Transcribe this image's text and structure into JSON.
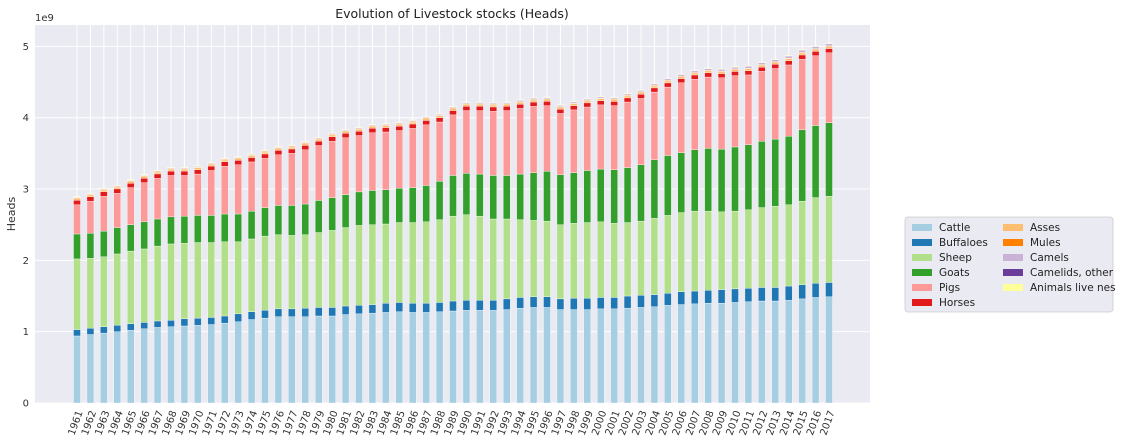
{
  "chart_data": {
    "type": "bar",
    "stacked": true,
    "title": "Evolution of Livestock stocks (Heads)",
    "xlabel": "",
    "ylabel": "Heads",
    "y_offset_text": "1e9",
    "ylim": [
      0,
      5.3
    ],
    "y_ticks": [
      0,
      1,
      2,
      3,
      4,
      5
    ],
    "y_tick_labels": [
      "0",
      "1",
      "2",
      "3",
      "4",
      "5"
    ],
    "value_unit_note": "values in billions of heads",
    "grid": true,
    "legend_position": "right",
    "categories": [
      "1961",
      "1962",
      "1963",
      "1964",
      "1965",
      "1966",
      "1967",
      "1968",
      "1969",
      "1970",
      "1971",
      "1972",
      "1973",
      "1974",
      "1975",
      "1976",
      "1977",
      "1978",
      "1979",
      "1980",
      "1981",
      "1982",
      "1983",
      "1984",
      "1985",
      "1986",
      "1987",
      "1988",
      "1989",
      "1990",
      "1991",
      "1992",
      "1993",
      "1994",
      "1995",
      "1996",
      "1997",
      "1998",
      "1999",
      "2000",
      "2001",
      "2002",
      "2003",
      "2004",
      "2005",
      "2006",
      "2007",
      "2008",
      "2009",
      "2010",
      "2011",
      "2012",
      "2013",
      "2014",
      "2015",
      "2016",
      "2017"
    ],
    "series": [
      {
        "name": "Cattle",
        "color": "#a6cee3",
        "values": [
          0.94,
          0.96,
          0.98,
          1.0,
          1.02,
          1.04,
          1.06,
          1.07,
          1.08,
          1.09,
          1.1,
          1.12,
          1.14,
          1.17,
          1.19,
          1.21,
          1.21,
          1.21,
          1.22,
          1.22,
          1.24,
          1.25,
          1.26,
          1.27,
          1.28,
          1.27,
          1.27,
          1.28,
          1.29,
          1.3,
          1.3,
          1.3,
          1.31,
          1.33,
          1.34,
          1.34,
          1.31,
          1.31,
          1.31,
          1.32,
          1.32,
          1.33,
          1.34,
          1.35,
          1.37,
          1.38,
          1.39,
          1.4,
          1.4,
          1.41,
          1.42,
          1.43,
          1.43,
          1.44,
          1.46,
          1.48,
          1.49
        ]
      },
      {
        "name": "Buffaloes",
        "color": "#1f78b4",
        "values": [
          0.09,
          0.09,
          0.09,
          0.09,
          0.09,
          0.09,
          0.09,
          0.09,
          0.1,
          0.1,
          0.1,
          0.1,
          0.11,
          0.11,
          0.11,
          0.11,
          0.11,
          0.12,
          0.12,
          0.12,
          0.12,
          0.12,
          0.12,
          0.13,
          0.13,
          0.13,
          0.13,
          0.13,
          0.14,
          0.14,
          0.14,
          0.14,
          0.15,
          0.15,
          0.15,
          0.15,
          0.15,
          0.16,
          0.16,
          0.16,
          0.16,
          0.17,
          0.17,
          0.17,
          0.17,
          0.18,
          0.18,
          0.18,
          0.19,
          0.19,
          0.19,
          0.19,
          0.19,
          0.2,
          0.2,
          0.2,
          0.2
        ]
      },
      {
        "name": "Sheep",
        "color": "#b2df8a",
        "values": [
          0.99,
          0.98,
          0.98,
          1.0,
          1.02,
          1.03,
          1.05,
          1.07,
          1.06,
          1.06,
          1.05,
          1.04,
          1.01,
          1.02,
          1.04,
          1.04,
          1.03,
          1.03,
          1.05,
          1.08,
          1.1,
          1.12,
          1.12,
          1.11,
          1.12,
          1.13,
          1.14,
          1.16,
          1.19,
          1.2,
          1.18,
          1.14,
          1.12,
          1.09,
          1.07,
          1.06,
          1.04,
          1.05,
          1.06,
          1.06,
          1.04,
          1.03,
          1.04,
          1.07,
          1.09,
          1.11,
          1.12,
          1.11,
          1.09,
          1.09,
          1.1,
          1.12,
          1.14,
          1.14,
          1.17,
          1.2,
          1.21
        ]
      },
      {
        "name": "Goats",
        "color": "#33a02c",
        "values": [
          0.35,
          0.35,
          0.36,
          0.37,
          0.37,
          0.38,
          0.38,
          0.38,
          0.38,
          0.38,
          0.38,
          0.39,
          0.39,
          0.39,
          0.4,
          0.41,
          0.42,
          0.43,
          0.45,
          0.46,
          0.46,
          0.47,
          0.48,
          0.48,
          0.48,
          0.49,
          0.51,
          0.54,
          0.57,
          0.58,
          0.59,
          0.61,
          0.61,
          0.64,
          0.67,
          0.7,
          0.7,
          0.71,
          0.73,
          0.74,
          0.75,
          0.77,
          0.79,
          0.82,
          0.84,
          0.84,
          0.86,
          0.88,
          0.88,
          0.9,
          0.91,
          0.93,
          0.94,
          0.96,
          1.0,
          1.01,
          1.03
        ]
      },
      {
        "name": "Pigs",
        "color": "#fb9a99",
        "values": [
          0.41,
          0.45,
          0.49,
          0.48,
          0.52,
          0.55,
          0.57,
          0.58,
          0.57,
          0.58,
          0.63,
          0.67,
          0.69,
          0.69,
          0.69,
          0.71,
          0.73,
          0.76,
          0.77,
          0.79,
          0.8,
          0.79,
          0.81,
          0.81,
          0.81,
          0.83,
          0.85,
          0.83,
          0.85,
          0.88,
          0.89,
          0.9,
          0.91,
          0.92,
          0.93,
          0.92,
          0.86,
          0.88,
          0.89,
          0.9,
          0.9,
          0.92,
          0.93,
          0.95,
          0.96,
          0.98,
          0.99,
          1.0,
          1.0,
          1.0,
          0.98,
          0.98,
          0.99,
          1.0,
          0.99,
          0.98,
          0.98
        ]
      },
      {
        "name": "Horses",
        "color": "#e31a1c",
        "values": [
          0.063,
          0.063,
          0.063,
          0.062,
          0.062,
          0.062,
          0.062,
          0.062,
          0.062,
          0.062,
          0.062,
          0.062,
          0.062,
          0.062,
          0.062,
          0.062,
          0.062,
          0.062,
          0.062,
          0.062,
          0.062,
          0.062,
          0.062,
          0.062,
          0.062,
          0.062,
          0.062,
          0.061,
          0.061,
          0.061,
          0.061,
          0.061,
          0.06,
          0.06,
          0.06,
          0.059,
          0.058,
          0.058,
          0.058,
          0.058,
          0.058,
          0.058,
          0.058,
          0.058,
          0.058,
          0.059,
          0.059,
          0.059,
          0.059,
          0.059,
          0.059,
          0.059,
          0.059,
          0.059,
          0.06,
          0.06,
          0.06
        ]
      },
      {
        "name": "Asses",
        "color": "#fdbf6f",
        "values": [
          0.025,
          0.025,
          0.025,
          0.025,
          0.025,
          0.025,
          0.026,
          0.026,
          0.026,
          0.026,
          0.026,
          0.026,
          0.026,
          0.026,
          0.026,
          0.026,
          0.026,
          0.027,
          0.027,
          0.027,
          0.027,
          0.027,
          0.027,
          0.027,
          0.027,
          0.027,
          0.027,
          0.027,
          0.028,
          0.028,
          0.028,
          0.028,
          0.028,
          0.028,
          0.028,
          0.028,
          0.028,
          0.028,
          0.028,
          0.028,
          0.028,
          0.028,
          0.028,
          0.028,
          0.028,
          0.028,
          0.028,
          0.028,
          0.028,
          0.028,
          0.028,
          0.028,
          0.028,
          0.029,
          0.029,
          0.029,
          0.029
        ]
      },
      {
        "name": "Mules",
        "color": "#ff7f00",
        "values": [
          0.009,
          0.009,
          0.009,
          0.009,
          0.009,
          0.009,
          0.009,
          0.009,
          0.009,
          0.009,
          0.009,
          0.009,
          0.009,
          0.009,
          0.009,
          0.009,
          0.009,
          0.009,
          0.009,
          0.009,
          0.009,
          0.009,
          0.009,
          0.009,
          0.009,
          0.009,
          0.009,
          0.009,
          0.009,
          0.009,
          0.009,
          0.009,
          0.009,
          0.009,
          0.009,
          0.009,
          0.009,
          0.009,
          0.008,
          0.008,
          0.008,
          0.008,
          0.008,
          0.008,
          0.008,
          0.008,
          0.008,
          0.008,
          0.008,
          0.008,
          0.008,
          0.008,
          0.008,
          0.008,
          0.008,
          0.008,
          0.008
        ]
      },
      {
        "name": "Camels",
        "color": "#cab2d6",
        "values": [
          0.013,
          0.013,
          0.013,
          0.013,
          0.013,
          0.014,
          0.014,
          0.014,
          0.014,
          0.014,
          0.014,
          0.014,
          0.014,
          0.014,
          0.015,
          0.015,
          0.015,
          0.015,
          0.015,
          0.016,
          0.016,
          0.016,
          0.016,
          0.017,
          0.017,
          0.017,
          0.017,
          0.018,
          0.018,
          0.018,
          0.019,
          0.019,
          0.019,
          0.02,
          0.02,
          0.02,
          0.021,
          0.021,
          0.021,
          0.022,
          0.022,
          0.023,
          0.023,
          0.024,
          0.025,
          0.026,
          0.026,
          0.027,
          0.028,
          0.029,
          0.03,
          0.031,
          0.032,
          0.033,
          0.034,
          0.035,
          0.035
        ]
      },
      {
        "name": "Camelids, other",
        "color": "#6a3d9a",
        "values": [
          0.003,
          0.003,
          0.003,
          0.003,
          0.003,
          0.003,
          0.003,
          0.003,
          0.003,
          0.003,
          0.003,
          0.003,
          0.003,
          0.003,
          0.003,
          0.003,
          0.003,
          0.003,
          0.003,
          0.003,
          0.003,
          0.003,
          0.003,
          0.003,
          0.003,
          0.003,
          0.003,
          0.003,
          0.003,
          0.003,
          0.003,
          0.003,
          0.003,
          0.003,
          0.003,
          0.003,
          0.003,
          0.003,
          0.003,
          0.003,
          0.003,
          0.003,
          0.003,
          0.003,
          0.003,
          0.003,
          0.003,
          0.003,
          0.003,
          0.003,
          0.003,
          0.003,
          0.003,
          0.003,
          0.003,
          0.003,
          0.003
        ]
      },
      {
        "name": "Animals live nes",
        "color": "#ffff99",
        "values": [
          0.002,
          0.002,
          0.002,
          0.002,
          0.002,
          0.002,
          0.002,
          0.002,
          0.002,
          0.002,
          0.002,
          0.002,
          0.002,
          0.002,
          0.002,
          0.002,
          0.002,
          0.002,
          0.002,
          0.002,
          0.002,
          0.002,
          0.002,
          0.002,
          0.002,
          0.002,
          0.002,
          0.002,
          0.002,
          0.002,
          0.002,
          0.002,
          0.002,
          0.002,
          0.002,
          0.002,
          0.002,
          0.002,
          0.002,
          0.002,
          0.002,
          0.002,
          0.002,
          0.002,
          0.002,
          0.002,
          0.002,
          0.002,
          0.002,
          0.002,
          0.002,
          0.002,
          0.002,
          0.002,
          0.002,
          0.002,
          0.002
        ]
      }
    ]
  }
}
